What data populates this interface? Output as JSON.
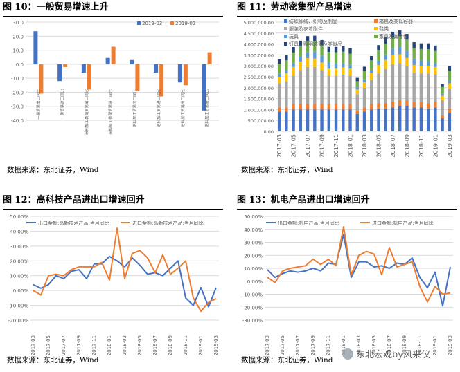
{
  "panels": [
    {
      "figure": "图 10：",
      "title": "一般贸易增速上升",
      "source": "数据来源：东北证券，Wind"
    },
    {
      "figure": "图 11：",
      "title": "劳动密集型产品增速",
      "source": "数据来源：东北证券，Wind"
    },
    {
      "figure": "图 12：",
      "title": "高科技产品进出口增速回升",
      "source": "数据来源：东北证券，Wind"
    },
    {
      "figure": "图 13：",
      "title": "机电产品进出口增速回升",
      "source": "数据来源：东北证券，Wind"
    }
  ],
  "watermark": "东北宏观by风来仪",
  "colors": {
    "blue": "#4472c4",
    "orange": "#ed7d31",
    "gray": "#a5a5a5",
    "yellow": "#ffc000",
    "lightblue": "#5b9bd5",
    "green": "#70ad47",
    "navy": "#264478",
    "grid": "#d9d9d9",
    "axis": "#595959"
  },
  "chart_data": [
    {
      "type": "bar",
      "categories": [
        "一般贸易出口同比",
        "一般贸易进口同比",
        "来料加工装配贸易出口同比",
        "来料加工装配贸易进口同比",
        "进料加工贸易出口同比",
        "进料加工贸易进口同比",
        "进料加工贸易出口同比",
        "进料加工贸易进口同比"
      ],
      "series": [
        {
          "name": "2019-03",
          "values": [
            23.5,
            -12,
            -6,
            4.5,
            3,
            -6,
            -13,
            -33
          ]
        },
        {
          "name": "2019-02",
          "values": [
            -21,
            -2,
            -18,
            12.5,
            -19,
            -23,
            -15,
            8.5
          ]
        }
      ],
      "yticks": [
        "30.0",
        "20.0",
        "10.0",
        "0.0",
        "-10.0",
        "-20.0",
        "-30.0",
        "-40.0"
      ],
      "ylim": [
        -40,
        30
      ],
      "legend": "top-right",
      "grid": true
    },
    {
      "type": "bar",
      "stacked": true,
      "categories": [
        "2017-03",
        "2017-04",
        "2017-05",
        "2017-06",
        "2017-07",
        "2017-08",
        "2017-09",
        "2017-10",
        "2017-11",
        "2017-12",
        "2018-01",
        "2018-02",
        "2018-03",
        "2018-04",
        "2018-05",
        "2018-06",
        "2018-07",
        "2018-08",
        "2018-09",
        "2018-10",
        "2018-11",
        "2018-12",
        "2019-01",
        "2019-02",
        "2019-03"
      ],
      "xtick_labels": [
        "2017-03",
        "2017-05",
        "2017-07",
        "2017-09",
        "2017-11",
        "2018-01",
        "2018-03",
        "2018-05",
        "2018-07",
        "2018-09",
        "2018-11",
        "2019-01",
        "2019-03"
      ],
      "series": [
        {
          "name": "纺织纱线、织物及制品",
          "values": [
            900000,
            900000,
            1000000,
            1000000,
            1000000,
            1000000,
            1000000,
            1000000,
            1000000,
            1000000,
            1000000,
            800000,
            900000,
            1000000,
            1050000,
            1050000,
            1100000,
            1150000,
            1150000,
            1100000,
            1100000,
            1050000,
            1100000,
            600000,
            850000
          ]
        },
        {
          "name": "箱包及类似容器",
          "values": [
            200000,
            200000,
            250000,
            250000,
            250000,
            250000,
            250000,
            250000,
            250000,
            250000,
            250000,
            150000,
            200000,
            250000,
            250000,
            250000,
            270000,
            280000,
            280000,
            250000,
            250000,
            250000,
            260000,
            130000,
            200000
          ]
        },
        {
          "name": "服装及衣着附件",
          "values": [
            1100000,
            1200000,
            1300000,
            1550000,
            1700000,
            1700000,
            1550000,
            1300000,
            1300000,
            1350000,
            1300000,
            750000,
            900000,
            1100000,
            1350000,
            1550000,
            1700000,
            1700000,
            1550000,
            1350000,
            1300000,
            1350000,
            1250000,
            700000,
            900000
          ]
        },
        {
          "name": "鞋类",
          "values": [
            300000,
            350000,
            400000,
            400000,
            400000,
            380000,
            350000,
            320000,
            320000,
            330000,
            330000,
            220000,
            250000,
            320000,
            380000,
            420000,
            420000,
            400000,
            380000,
            330000,
            330000,
            350000,
            340000,
            200000,
            250000
          ]
        },
        {
          "name": "玩具",
          "values": [
            150000,
            150000,
            180000,
            220000,
            280000,
            320000,
            320000,
            300000,
            250000,
            200000,
            180000,
            100000,
            130000,
            150000,
            200000,
            250000,
            300000,
            330000,
            340000,
            300000,
            260000,
            210000,
            180000,
            100000,
            130000
          ]
        },
        {
          "name": "家具及其零件",
          "values": [
            450000,
            450000,
            480000,
            480000,
            480000,
            480000,
            470000,
            470000,
            500000,
            520000,
            500000,
            280000,
            400000,
            430000,
            480000,
            500000,
            500000,
            500000,
            500000,
            500000,
            530000,
            550000,
            550000,
            300000,
            450000
          ]
        },
        {
          "name": "灯具、照明装置及类似品",
          "values": [
            200000,
            230000,
            250000,
            250000,
            250000,
            250000,
            240000,
            230000,
            250000,
            260000,
            250000,
            150000,
            180000,
            200000,
            240000,
            270000,
            270000,
            260000,
            260000,
            250000,
            260000,
            270000,
            250000,
            130000,
            200000
          ]
        }
      ],
      "yticks": [
        "5,000,000.00",
        "4,500,000.00",
        "4,000,000.00",
        "3,500,000.00",
        "3,000,000.00",
        "2,500,000.00",
        "2,000,000.00",
        "1,500,000.00",
        "1,000,000.00",
        "500,000.00",
        "0.00"
      ],
      "ylim": [
        0,
        5000000
      ],
      "legend": "top",
      "grid": true
    },
    {
      "type": "line",
      "x": [
        "2017-03",
        "2017-04",
        "2017-05",
        "2017-06",
        "2017-07",
        "2017-08",
        "2017-09",
        "2017-10",
        "2017-11",
        "2017-12",
        "2018-01",
        "2018-02",
        "2018-03",
        "2018-04",
        "2018-05",
        "2018-06",
        "2018-07",
        "2018-08",
        "2018-09",
        "2018-10",
        "2018-11",
        "2018-12",
        "2019-01",
        "2019-02",
        "2019-03"
      ],
      "xtick_labels": [
        "2017-03",
        "2017-05",
        "2017-07",
        "2017-09",
        "2017-11",
        "2018-01",
        "2018-03",
        "2018-05",
        "2018-07",
        "2018-09",
        "2018-11",
        "2019-01",
        "2019-03"
      ],
      "series": [
        {
          "name": "出口金额:高新技术产品:当月同比",
          "values": [
            4,
            1.5,
            4,
            10,
            8,
            13,
            14,
            8,
            18,
            18,
            23,
            20,
            16,
            22,
            17,
            11,
            12,
            10,
            15,
            20,
            -5,
            -10,
            2,
            -11,
            2
          ]
        },
        {
          "name": "进口金额:高新技术产品:当月同比",
          "values": [
            0,
            -3,
            10,
            11,
            10,
            14,
            16,
            16,
            16,
            19,
            7,
            42,
            8,
            25,
            27,
            22,
            12,
            24,
            11,
            15,
            20,
            -5,
            -14,
            -8,
            -5.5
          ]
        }
      ],
      "yticks": [
        "50.00%",
        "40.00%",
        "30.00%",
        "20.00%",
        "10.00%",
        "0.00%",
        "-10.00%",
        "-20.00%"
      ],
      "ylim": [
        -20,
        50
      ],
      "legend": "top",
      "grid": true
    },
    {
      "type": "line",
      "x": [
        "2017-03",
        "2017-04",
        "2017-05",
        "2017-06",
        "2017-07",
        "2017-08",
        "2017-09",
        "2017-10",
        "2017-11",
        "2017-12",
        "2018-01",
        "2018-02",
        "2018-03",
        "2018-04",
        "2018-05",
        "2018-06",
        "2018-07",
        "2018-08",
        "2018-09",
        "2018-10",
        "2018-11",
        "2018-12",
        "2019-01",
        "2019-02",
        "2019-03"
      ],
      "xtick_labels": [
        "2017-03",
        "2017-05",
        "2017-07",
        "2017-09",
        "2017-11",
        "2018-01",
        "2018-03",
        "2018-05",
        "2018-07",
        "2018-09",
        "2018-11",
        "2019-01",
        "2019-03"
      ],
      "series": [
        {
          "name": "出口金额:机电产品:当月同比",
          "values": [
            9,
            3,
            6,
            8,
            7,
            8,
            10,
            8,
            14,
            13,
            36,
            3,
            15,
            15,
            11,
            12,
            10,
            14,
            13,
            18,
            3,
            -5,
            7,
            -19,
            11
          ]
        },
        {
          "name": "进口金额:机电产品:当月同比",
          "values": [
            3,
            -1,
            8,
            10,
            11,
            12,
            17,
            13,
            17,
            12,
            42,
            5,
            20,
            23,
            21,
            5,
            26,
            11,
            13,
            15,
            -4,
            -16,
            -4,
            -10,
            -9
          ]
        }
      ],
      "yticks": [
        "50.00%",
        "40.00%",
        "30.00%",
        "20.00%",
        "10.00%",
        "0.00%",
        "-10.00%",
        "-20.00%",
        "-30.00%"
      ],
      "ylim": [
        -30,
        50
      ],
      "legend": "top",
      "grid": true
    }
  ]
}
